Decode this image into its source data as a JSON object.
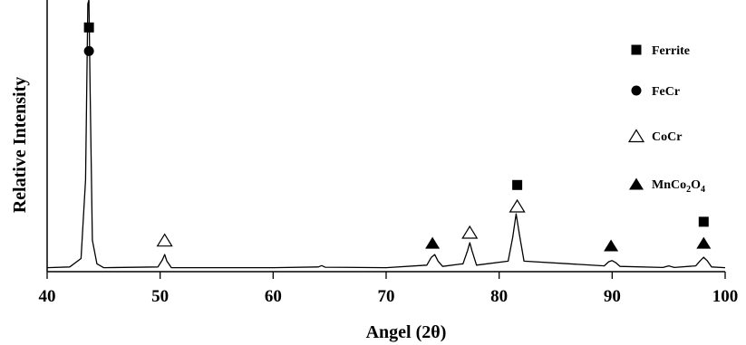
{
  "chart_data": {
    "type": "line",
    "title": "",
    "xlabel": "Angel (2θ)",
    "ylabel": "Relative Intensity",
    "xlim": [
      40,
      100
    ],
    "ylim": [
      0,
      100
    ],
    "xticks": [
      40,
      50,
      60,
      70,
      80,
      90,
      100
    ],
    "grid": false,
    "legend_position": "right",
    "series": [
      {
        "values": {
          "x": [
            40,
            42,
            43.0,
            43.4,
            43.6,
            43.7,
            43.8,
            44.0,
            44.4,
            45,
            49.8,
            50.2,
            50.4,
            50.6,
            51.0,
            60,
            64.0,
            64.3,
            64.6,
            70,
            73.6,
            74.0,
            74.3,
            74.6,
            75.0,
            76.8,
            77.2,
            77.4,
            77.6,
            78.0,
            80.8,
            81.2,
            81.5,
            81.8,
            82.2,
            89.3,
            89.7,
            90.0,
            90.3,
            90.7,
            94.5,
            95.0,
            95.5,
            97.4,
            97.8,
            98.1,
            98.4,
            98.8,
            100
          ],
          "y": [
            1.5,
            1.8,
            5,
            35,
            102,
            105,
            70,
            12,
            3,
            1.5,
            1.8,
            4.5,
            6.5,
            4,
            1.5,
            1.5,
            1.8,
            2.3,
            1.7,
            1.5,
            2.5,
            5.5,
            6.5,
            4,
            2,
            3,
            8,
            11,
            8,
            2.5,
            4,
            13,
            22,
            14,
            4,
            2.2,
            3.8,
            4.2,
            3.5,
            2,
            1.6,
            2.2,
            1.6,
            2.2,
            4.2,
            5.5,
            4.2,
            1.8,
            1.5
          ]
        }
      }
    ],
    "peak_markers": [
      {
        "marker": "square",
        "x": 43.7,
        "level": 93
      },
      {
        "marker": "circle",
        "x": 43.7,
        "level": 84
      },
      {
        "marker": "triangle-open",
        "x": 50.4,
        "level": 12
      },
      {
        "marker": "triangle-filled",
        "x": 74.1,
        "level": 11
      },
      {
        "marker": "triangle-open",
        "x": 77.4,
        "level": 15
      },
      {
        "marker": "square",
        "x": 81.6,
        "level": 33
      },
      {
        "marker": "triangle-open",
        "x": 81.6,
        "level": 25
      },
      {
        "marker": "triangle-filled",
        "x": 89.9,
        "level": 10
      },
      {
        "marker": "square",
        "x": 98.1,
        "level": 19
      },
      {
        "marker": "triangle-filled",
        "x": 98.1,
        "level": 11
      }
    ],
    "legend": [
      {
        "label": "Ferrite",
        "marker": "square"
      },
      {
        "label": "FeCr",
        "marker": "circle"
      },
      {
        "label": "CoCr",
        "marker": "triangle-open"
      },
      {
        "label": "MnCo2O4",
        "marker": "triangle-filled",
        "base": "MnCo",
        "sub1": "2",
        "mid": "O",
        "sub2": "4"
      }
    ]
  }
}
